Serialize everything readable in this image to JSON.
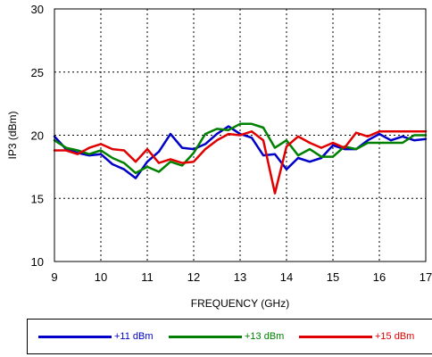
{
  "chart_data": {
    "type": "line",
    "title": "",
    "xlabel": "FREQUENCY (GHz)",
    "ylabel": "IP3 (dBm)",
    "xlim": [
      9,
      17
    ],
    "ylim": [
      10,
      30
    ],
    "xticks": [
      9,
      10,
      11,
      12,
      13,
      14,
      15,
      16,
      17
    ],
    "yticks": [
      10,
      15,
      20,
      25,
      30
    ],
    "grid": true,
    "legend_position": "bottom",
    "series": [
      {
        "name": "+11 dBm",
        "color": "#0000c8",
        "x": [
          9.0,
          9.25,
          9.5,
          9.75,
          10.0,
          10.25,
          10.5,
          10.75,
          11.0,
          11.25,
          11.5,
          11.75,
          12.0,
          12.25,
          12.5,
          12.75,
          13.0,
          13.25,
          13.5,
          13.75,
          14.0,
          14.25,
          14.5,
          14.75,
          15.0,
          15.25,
          15.5,
          15.75,
          16.0,
          16.25,
          16.5,
          16.75,
          17.0
        ],
        "y": [
          19.9,
          18.9,
          18.6,
          18.4,
          18.5,
          17.7,
          17.3,
          16.6,
          17.9,
          18.7,
          20.1,
          19.0,
          18.9,
          19.3,
          20.1,
          20.7,
          20.1,
          19.8,
          18.4,
          18.5,
          17.3,
          18.2,
          17.9,
          18.2,
          19.2,
          18.9,
          18.9,
          19.6,
          20.1,
          19.6,
          19.9,
          19.6,
          19.7
        ]
      },
      {
        "name": "+13 dBm",
        "color": "#008000",
        "x": [
          9.0,
          9.25,
          9.5,
          9.75,
          10.0,
          10.25,
          10.5,
          10.75,
          11.0,
          11.25,
          11.5,
          11.75,
          12.0,
          12.25,
          12.5,
          12.75,
          13.0,
          13.25,
          13.5,
          13.75,
          14.0,
          14.25,
          14.5,
          14.75,
          15.0,
          15.25,
          15.5,
          15.75,
          16.0,
          16.25,
          16.5,
          16.75,
          17.0
        ],
        "y": [
          19.6,
          19.0,
          18.8,
          18.5,
          18.8,
          18.2,
          17.8,
          17.0,
          17.5,
          17.1,
          17.9,
          17.6,
          18.6,
          20.1,
          20.5,
          20.4,
          20.9,
          20.9,
          20.6,
          19.0,
          19.6,
          18.4,
          18.9,
          18.3,
          18.3,
          19.1,
          18.9,
          19.4,
          19.4,
          19.4,
          19.4,
          20.0,
          20.0
        ]
      },
      {
        "name": "+15 dBm",
        "color": "#e00000",
        "x": [
          9.0,
          9.25,
          9.5,
          9.75,
          10.0,
          10.25,
          10.5,
          10.75,
          11.0,
          11.25,
          11.5,
          11.75,
          12.0,
          12.25,
          12.5,
          12.75,
          13.0,
          13.25,
          13.5,
          13.75,
          14.0,
          14.25,
          14.5,
          14.75,
          15.0,
          15.25,
          15.5,
          15.75,
          16.0,
          16.25,
          16.5,
          16.75,
          17.0
        ],
        "y": [
          18.8,
          18.8,
          18.5,
          19.0,
          19.3,
          18.9,
          18.8,
          17.9,
          18.9,
          17.8,
          18.1,
          17.8,
          17.9,
          18.9,
          19.6,
          20.1,
          20.0,
          20.3,
          19.6,
          15.4,
          19.1,
          19.9,
          19.4,
          19.0,
          19.4,
          19.0,
          20.2,
          19.9,
          20.3,
          20.3,
          20.3,
          20.3,
          20.3
        ]
      }
    ]
  }
}
